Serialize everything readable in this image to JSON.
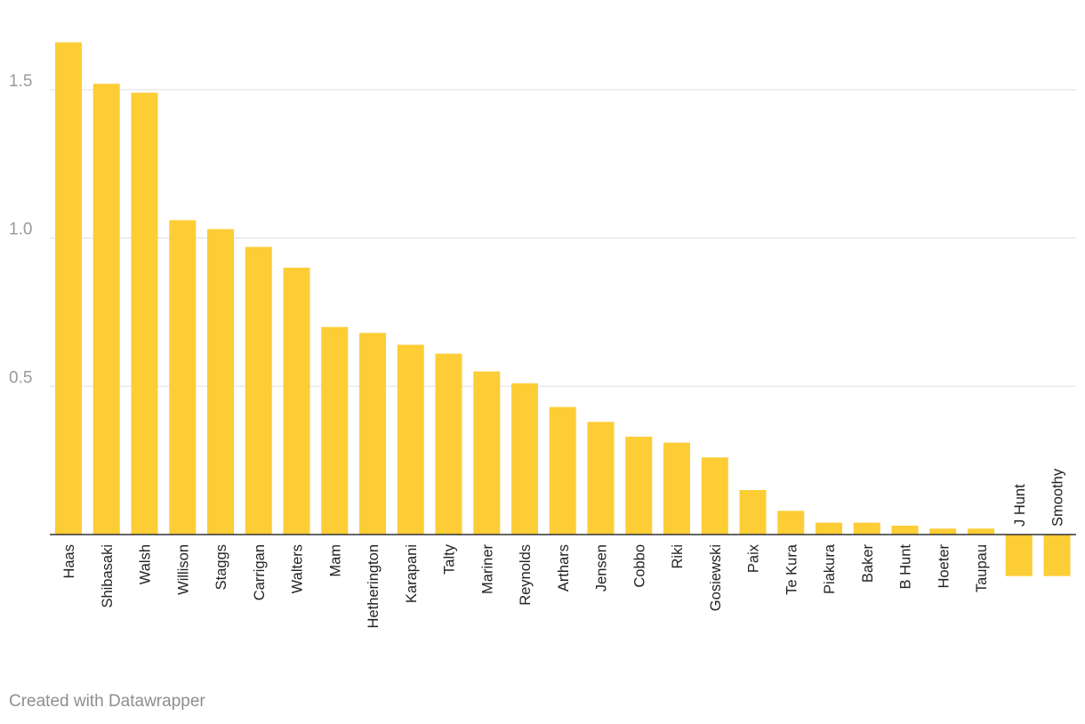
{
  "chart_data": {
    "type": "bar",
    "categories": [
      "Haas",
      "Shibasaki",
      "Walsh",
      "Willison",
      "Staggs",
      "Carrigan",
      "Walters",
      "Mam",
      "Hetherington",
      "Karapani",
      "Talty",
      "Mariner",
      "Reynolds",
      "Arthars",
      "Jensen",
      "Cobbo",
      "Riki",
      "Gosiewski",
      "Paix",
      "Te Kura",
      "Piakura",
      "Baker",
      "B Hunt",
      "Hoeter",
      "Taupau",
      "J Hunt",
      "Smoothy"
    ],
    "values": [
      1.66,
      1.52,
      1.49,
      1.06,
      1.03,
      0.97,
      0.9,
      0.7,
      0.68,
      0.64,
      0.61,
      0.55,
      0.51,
      0.43,
      0.38,
      0.33,
      0.31,
      0.26,
      0.15,
      0.08,
      0.04,
      0.04,
      0.03,
      0.02,
      0.02,
      -0.14,
      -0.14
    ],
    "yticks": [
      0.5,
      1.0,
      1.5
    ],
    "ytick_labels": [
      "0.5",
      "1.0",
      "1.5"
    ],
    "ylim": [
      -0.14,
      1.66
    ],
    "title": "",
    "xlabel": "",
    "ylabel": "",
    "grid": true,
    "bar_color": "#fdcd35",
    "grid_color": "#e4e4e4",
    "axis_color": "#333333"
  },
  "footer": {
    "credit": "Created with Datawrapper"
  }
}
